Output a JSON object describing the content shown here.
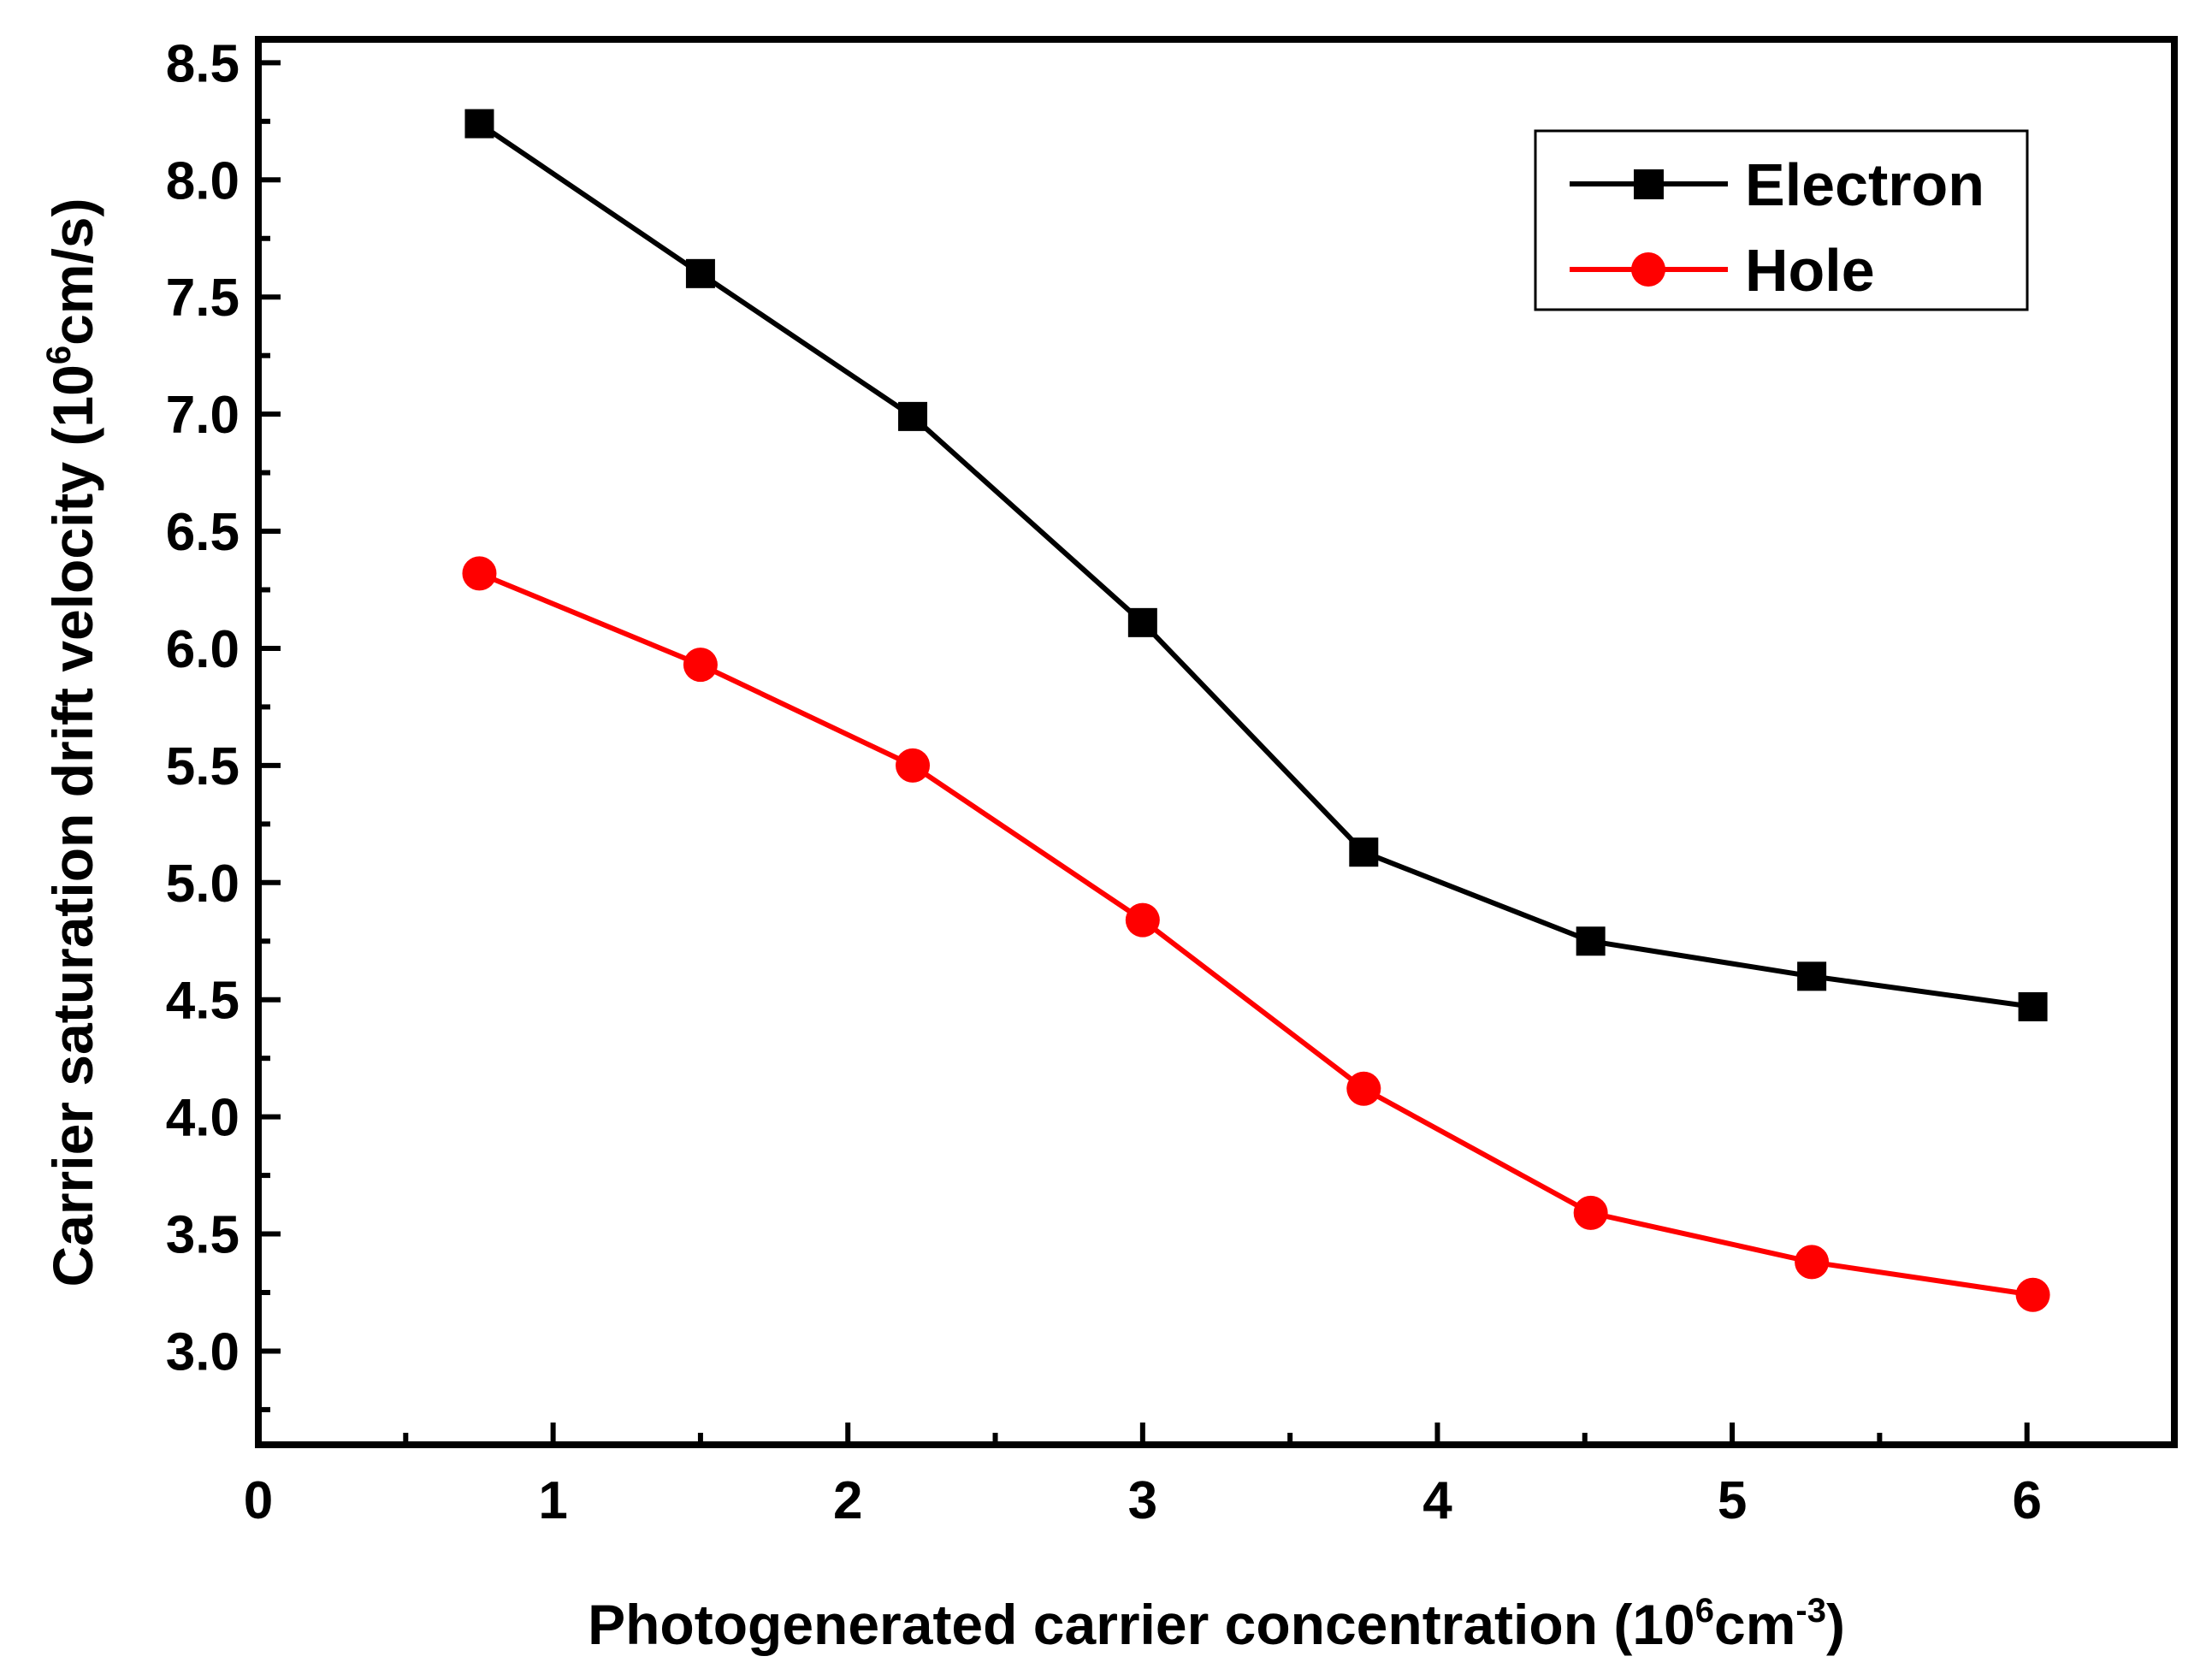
{
  "chart_data": {
    "type": "line",
    "title": "",
    "xlabel": {
      "prefix": "Photogenerated carrier concentration (10",
      "sup": "6",
      "middle": "cm",
      "sup2": "-3",
      "suffix": ")"
    },
    "ylabel": {
      "prefix": "Carrier saturation drift velocity (10",
      "sup": "6",
      "suffix": "cm/s)"
    },
    "xlim": [
      0,
      6.5
    ],
    "ylim": [
      2.6,
      8.6
    ],
    "xticks": [
      0,
      1,
      2,
      3,
      4,
      5,
      6
    ],
    "xtick_labels": [
      "0",
      "1",
      "2",
      "3",
      "4",
      "5",
      "6"
    ],
    "yticks": [
      3.0,
      3.5,
      4.0,
      4.5,
      5.0,
      5.5,
      6.0,
      6.5,
      7.0,
      7.5,
      8.0,
      8.5
    ],
    "ytick_labels": [
      "3.0",
      "3.5",
      "4.0",
      "4.5",
      "5.0",
      "5.5",
      "6.0",
      "6.5",
      "7.0",
      "7.5",
      "8.0",
      "8.5"
    ],
    "x": [
      0.75,
      1.5,
      2.22,
      3.0,
      3.75,
      4.52,
      5.27,
      6.02
    ],
    "series": [
      {
        "name": "Electron",
        "color": "#000000",
        "marker": "square",
        "values": [
          8.24,
          7.6,
          6.99,
          6.11,
          5.13,
          4.75,
          4.6,
          4.47
        ]
      },
      {
        "name": "Hole",
        "color": "#ff0000",
        "marker": "circle",
        "values": [
          6.32,
          5.93,
          5.5,
          4.84,
          4.12,
          3.59,
          3.38,
          3.24
        ]
      }
    ],
    "legend_position": "top-right",
    "grid": false
  }
}
